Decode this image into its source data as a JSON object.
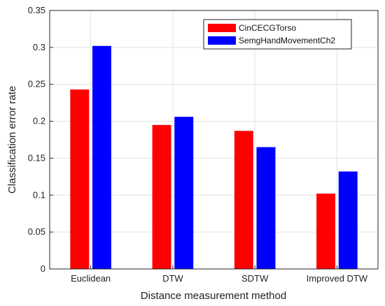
{
  "chart_data": {
    "type": "bar",
    "title": "",
    "xlabel": "Distance measurement method",
    "ylabel": "Classification error rate",
    "categories": [
      "Euclidean",
      "DTW",
      "SDTW",
      "Improved DTW"
    ],
    "series": [
      {
        "name": "CinCECGTorso",
        "color": "#ff0000",
        "values": [
          0.243,
          0.195,
          0.187,
          0.102
        ]
      },
      {
        "name": "SemgHandMovementCh2",
        "color": "#0000ff",
        "values": [
          0.302,
          0.206,
          0.165,
          0.132
        ]
      }
    ],
    "ylim": [
      0,
      0.35
    ],
    "yticks": [
      "0",
      "0.05",
      "0.1",
      "0.15",
      "0.2",
      "0.25",
      "0.3",
      "0.35"
    ],
    "ytick_values": [
      0,
      0.05,
      0.1,
      0.15,
      0.2,
      0.25,
      0.3,
      0.35
    ],
    "grid": true,
    "legend_position": "top-right"
  }
}
